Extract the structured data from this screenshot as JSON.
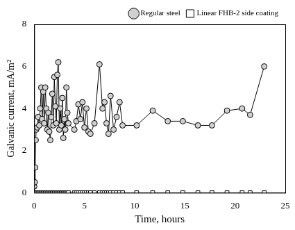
{
  "chart_data": {
    "type": "scatter",
    "x_label": "Time, hours",
    "y_label": "Galvanic current, mA/m²",
    "x": [
      0,
      0.05,
      0.1,
      0.15,
      0.2,
      0.3,
      0.4,
      0.5,
      0.6,
      0.7,
      0.8,
      0.9,
      1.0,
      1.1,
      1.2,
      1.3,
      1.4,
      1.5,
      1.6,
      1.7,
      1.8,
      1.9,
      2.0,
      2.1,
      2.2,
      2.3,
      2.4,
      2.5,
      2.6,
      2.7,
      2.8,
      2.9,
      3.0,
      3.1,
      3.2,
      3.3,
      3.4,
      4.0,
      4.2,
      4.4,
      4.6,
      4.8,
      5.0,
      5.2,
      5.4,
      5.6,
      6.0,
      6.5,
      6.8,
      7.0,
      7.2,
      7.4,
      7.6,
      7.9,
      8.2,
      8.5,
      8.8,
      10.2,
      11.8,
      13.3,
      14.8,
      16.3,
      17.7,
      19.2,
      20.7,
      21.5,
      22.9
    ],
    "series": [
      {
        "name": "Regular steel",
        "color": "#000000",
        "marker": "circle",
        "line_style": "solid",
        "values": [
          0.3,
          0.5,
          1.2,
          2.5,
          3.0,
          3.1,
          3.6,
          3.2,
          4.0,
          5.0,
          3.5,
          4.8,
          3.3,
          5.0,
          4.0,
          3.0,
          3.8,
          2.9,
          2.5,
          3.6,
          4.7,
          3.2,
          5.5,
          4.1,
          3.3,
          5.6,
          6.2,
          3.0,
          4.0,
          3.2,
          4.5,
          2.6,
          3.5,
          3.0,
          5.0,
          3.8,
          3.3,
          3.0,
          3.4,
          4.2,
          3.5,
          4.3,
          3.1,
          4.0,
          2.9,
          2.8,
          3.3,
          6.1,
          4.0,
          4.3,
          3.3,
          2.8,
          4.6,
          3.0,
          3.6,
          4.3,
          3.2,
          3.2,
          3.9,
          3.4,
          3.4,
          3.2,
          3.2,
          3.9,
          4.0,
          3.7,
          6.0
        ]
      },
      {
        "name": "Linear FHB-2 side coating",
        "color": "#000000",
        "marker": "square",
        "line_style": "none",
        "values": [
          0,
          0,
          0,
          0,
          0,
          0,
          0,
          0,
          0,
          0,
          0,
          0,
          0,
          0,
          0,
          0,
          0,
          0,
          0,
          0,
          0,
          0,
          0,
          0,
          0,
          0,
          0,
          0,
          0,
          0,
          0,
          0,
          0,
          0,
          0,
          0,
          0,
          0,
          0,
          0,
          0,
          0,
          0,
          0,
          0,
          0,
          0,
          0,
          0,
          0,
          0,
          0,
          0,
          0,
          0,
          0,
          0,
          0,
          0,
          0,
          0,
          0,
          0,
          0,
          0,
          0,
          0
        ]
      }
    ],
    "xlim": [
      0,
      25
    ],
    "xticks": [
      0,
      5,
      10,
      15,
      20,
      25
    ],
    "ylim": [
      0,
      8
    ],
    "yticks": [
      0,
      2,
      4,
      6,
      8
    ],
    "grid": false,
    "legend": "top-right"
  }
}
